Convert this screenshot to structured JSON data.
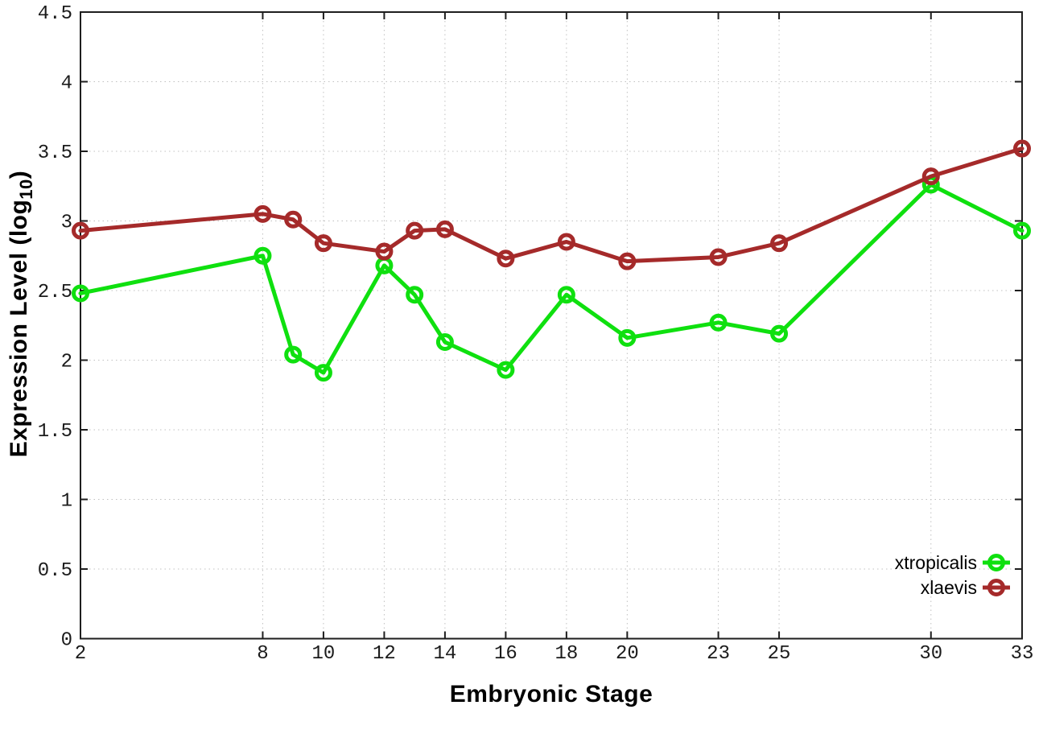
{
  "chart_data": {
    "type": "line",
    "title": "",
    "xlabel": "Embryonic Stage",
    "ylabel": "Expression Level (log10)",
    "x": [
      2,
      8,
      9,
      10,
      12,
      13,
      14,
      16,
      18,
      20,
      23,
      25,
      30,
      33
    ],
    "series": [
      {
        "name": "xtropicalis",
        "color": "#0fe00f",
        "values": [
          2.48,
          2.75,
          2.04,
          1.91,
          2.68,
          2.47,
          2.13,
          1.93,
          2.47,
          2.16,
          2.27,
          2.19,
          3.26,
          2.93
        ]
      },
      {
        "name": "xlaevis",
        "color": "#a52a2a",
        "values": [
          2.93,
          3.05,
          3.01,
          2.84,
          2.78,
          2.93,
          2.94,
          2.73,
          2.85,
          2.71,
          2.74,
          2.84,
          3.32,
          3.52
        ]
      }
    ],
    "xlim": [
      2,
      33
    ],
    "ylim": [
      0,
      4.5
    ],
    "xtick_values": [
      2,
      8,
      10,
      12,
      14,
      16,
      18,
      20,
      23,
      25,
      30,
      33
    ],
    "xtick_labels": [
      "2",
      "8",
      "10",
      "12",
      "14",
      "16",
      "18",
      "20",
      "23",
      "25",
      "30",
      "33"
    ],
    "ytick_values": [
      0,
      0.5,
      1,
      1.5,
      2,
      2.5,
      3,
      3.5,
      4,
      4.5
    ],
    "ytick_labels": [
      "0",
      "0.5",
      "1",
      "1.5",
      "2",
      "2.5",
      "3",
      "3.5",
      "4",
      "4.5"
    ],
    "grid": true,
    "grid_style": "dotted",
    "marker": "open-circle",
    "legend_position": "inside-bottom-right"
  },
  "labels": {
    "xlabel": "Embryonic Stage",
    "ylabel_prefix": "Expression Level (log",
    "ylabel_sub": "10",
    "ylabel_suffix": ")"
  },
  "legend": {
    "entries": [
      "xtropicalis",
      "xlaevis"
    ]
  },
  "colors": {
    "xtropicalis": "#0fe00f",
    "xlaevis": "#a52a2a",
    "grid": "#c0c0c0",
    "axis": "#1e1e1e",
    "background": "#ffffff"
  }
}
